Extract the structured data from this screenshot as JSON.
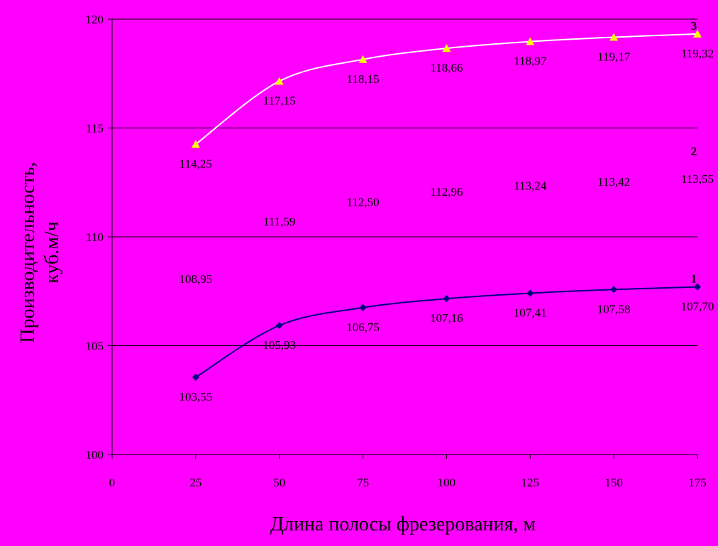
{
  "chart_data": {
    "type": "line",
    "title": "",
    "xlabel": "Длина полосы фрезерования, м",
    "ylabel_line1": "Производительность,",
    "ylabel_line2": "куб.м/ч",
    "xlim": [
      0,
      175
    ],
    "ylim": [
      100,
      120
    ],
    "x_ticks": [
      "0",
      "25",
      "50",
      "75",
      "100",
      "125",
      "150",
      "175"
    ],
    "y_ticks": [
      "100",
      "105",
      "110",
      "115",
      "120"
    ],
    "grid": "horizontal",
    "x": [
      25,
      50,
      75,
      100,
      125,
      150,
      175
    ],
    "series": [
      {
        "name": "1",
        "color": "#000080",
        "marker": "diamond",
        "line_visible": true,
        "values": [
          103.55,
          105.93,
          106.75,
          107.16,
          107.41,
          107.58,
          107.7
        ],
        "labels": [
          "103,55",
          "105,93",
          "106,75",
          "107,16",
          "107,41",
          "107,58",
          "107,70"
        ]
      },
      {
        "name": "2",
        "color": "#ff00ff",
        "marker": "none",
        "line_visible": false,
        "values": [
          108.95,
          111.59,
          112.5,
          112.96,
          113.24,
          113.42,
          113.55
        ],
        "labels": [
          "108,95",
          "111,59",
          "112,50",
          "112,96",
          "113,24",
          "113,42",
          "113,55"
        ]
      },
      {
        "name": "3",
        "color": "#ffffff",
        "marker_color": "#ffff00",
        "marker": "triangle",
        "line_visible": true,
        "values": [
          114.25,
          117.15,
          118.15,
          118.66,
          118.97,
          119.17,
          119.32
        ],
        "labels": [
          "114,25",
          "117,15",
          "118,15",
          "118,66",
          "118,97",
          "119,17",
          "119,32"
        ]
      }
    ],
    "colors": {
      "background": "#ff00ff",
      "axis": "#000000",
      "grid": "#000000"
    }
  }
}
